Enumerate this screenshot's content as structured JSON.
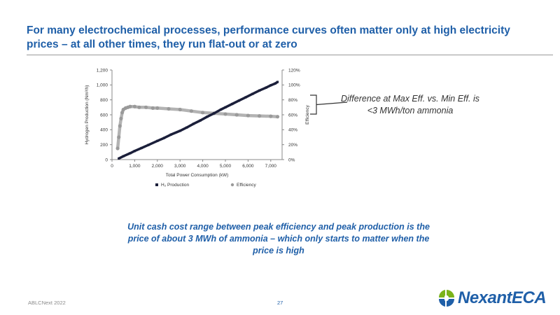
{
  "slide": {
    "title": "For many electrochemical processes, performance curves often matter only at high electricity prices – at all other times, they run flat-out or at zero",
    "callout": "Difference at Max Eff. vs. Min Eff. is <3 MWh/ton ammonia",
    "summary": "Unit cash cost range between peak efficiency and peak production is the price of about 3 MWh of ammonia – which only starts to matter when the price is high",
    "footer_left": "ABLCNext 2022",
    "page_number": "27",
    "logo_text": "NexantECA",
    "accent_color": "#1f5fa8"
  },
  "chart_data": {
    "type": "scatter",
    "xlabel": "Total Power Consumption (kW)",
    "ylabel": "Hydrogen Production (Nm³/h)",
    "y2label": "Efficiency",
    "xlim": [
      0,
      7500
    ],
    "ylim": [
      0,
      1200
    ],
    "y2lim": [
      0,
      1.2
    ],
    "x_ticks": [
      "0",
      "1,000",
      "2,000",
      "3,000",
      "4,000",
      "5,000",
      "6,000",
      "7,000"
    ],
    "y_ticks": [
      "0",
      "200",
      "400",
      "600",
      "800",
      "1,000",
      "1,200"
    ],
    "y2_ticks": [
      "0%",
      "20%",
      "40%",
      "60%",
      "80%",
      "100%",
      "120%"
    ],
    "grid": false,
    "legend_position": "bottom",
    "series": [
      {
        "name": "H₂ Production",
        "axis": "left",
        "color": "#1b1f3a",
        "points": [
          [
            300,
            15
          ],
          [
            500,
            45
          ],
          [
            800,
            85
          ],
          [
            1000,
            115
          ],
          [
            1300,
            155
          ],
          [
            1600,
            195
          ],
          [
            2000,
            250
          ],
          [
            2300,
            290
          ],
          [
            2600,
            335
          ],
          [
            3000,
            385
          ],
          [
            3300,
            430
          ],
          [
            3600,
            480
          ],
          [
            3900,
            525
          ],
          [
            4200,
            575
          ],
          [
            4500,
            620
          ],
          [
            4800,
            670
          ],
          [
            5000,
            700
          ],
          [
            5300,
            745
          ],
          [
            5600,
            790
          ],
          [
            5900,
            835
          ],
          [
            6200,
            880
          ],
          [
            6500,
            925
          ],
          [
            6800,
            965
          ],
          [
            7000,
            995
          ],
          [
            7200,
            1020
          ],
          [
            7300,
            1040
          ]
        ]
      },
      {
        "name": "Efficiency",
        "axis": "right",
        "color": "#9a9a9a",
        "points": [
          [
            250,
            0.15
          ],
          [
            300,
            0.3
          ],
          [
            350,
            0.45
          ],
          [
            400,
            0.55
          ],
          [
            450,
            0.63
          ],
          [
            500,
            0.67
          ],
          [
            600,
            0.69
          ],
          [
            700,
            0.7
          ],
          [
            800,
            0.71
          ],
          [
            1000,
            0.71
          ],
          [
            1200,
            0.7
          ],
          [
            1500,
            0.7
          ],
          [
            1800,
            0.69
          ],
          [
            2000,
            0.69
          ],
          [
            2500,
            0.68
          ],
          [
            3000,
            0.67
          ],
          [
            3500,
            0.65
          ],
          [
            4000,
            0.63
          ],
          [
            4500,
            0.62
          ],
          [
            5000,
            0.61
          ],
          [
            5500,
            0.6
          ],
          [
            6000,
            0.59
          ],
          [
            6500,
            0.585
          ],
          [
            7000,
            0.58
          ],
          [
            7300,
            0.575
          ]
        ]
      }
    ]
  }
}
